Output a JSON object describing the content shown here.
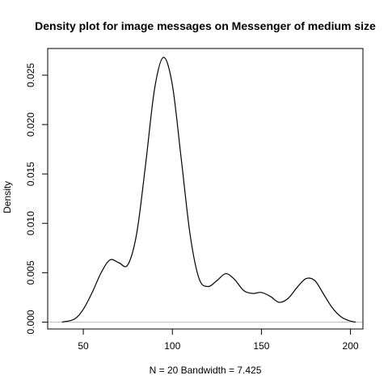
{
  "chart_data": {
    "type": "line",
    "title": "Density plot for image messages on Messenger of medium size",
    "xlabel": "N = 20   Bandwidth = 7.425",
    "ylabel": "Density",
    "xlim": [
      30,
      207
    ],
    "ylim": [
      -0.0007,
      0.0277
    ],
    "x_ticks": [
      50,
      100,
      150,
      200
    ],
    "y_ticks": [
      0.0,
      0.005,
      0.01,
      0.015,
      0.02,
      0.025
    ],
    "x_tick_labels": [
      "50",
      "100",
      "150",
      "200"
    ],
    "y_tick_labels": [
      "0.000",
      "0.005",
      "0.010",
      "0.015",
      "0.020",
      "0.025"
    ],
    "grid": false,
    "zero_line": true,
    "series": [
      {
        "values_xy": [
          [
            38,
            0.0
          ],
          [
            45,
            0.0003
          ],
          [
            50,
            0.0013
          ],
          [
            55,
            0.003
          ],
          [
            60,
            0.005
          ],
          [
            65,
            0.0063
          ],
          [
            70,
            0.006
          ],
          [
            75,
            0.0058
          ],
          [
            80,
            0.009
          ],
          [
            85,
            0.016
          ],
          [
            90,
            0.0236
          ],
          [
            95,
            0.0268
          ],
          [
            100,
            0.024
          ],
          [
            105,
            0.0165
          ],
          [
            110,
            0.0088
          ],
          [
            115,
            0.0044
          ],
          [
            120,
            0.0036
          ],
          [
            125,
            0.0042
          ],
          [
            130,
            0.0049
          ],
          [
            135,
            0.0043
          ],
          [
            140,
            0.0032
          ],
          [
            145,
            0.0029
          ],
          [
            150,
            0.003
          ],
          [
            155,
            0.0026
          ],
          [
            160,
            0.002
          ],
          [
            165,
            0.0024
          ],
          [
            170,
            0.0035
          ],
          [
            175,
            0.0044
          ],
          [
            180,
            0.0042
          ],
          [
            185,
            0.0028
          ],
          [
            190,
            0.0014
          ],
          [
            195,
            0.0005
          ],
          [
            200,
            0.0001
          ],
          [
            203,
            0.0
          ]
        ]
      }
    ]
  }
}
